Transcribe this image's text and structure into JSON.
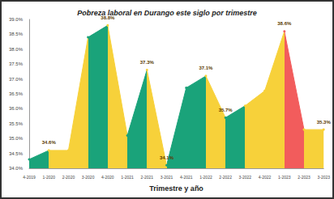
{
  "chart_data": {
    "type": "line",
    "title": "Pobreza laboral en Durango este siglo por trimestre",
    "x_label": "Trimestre y año",
    "categories": [
      "4-2019",
      "1-2020",
      "2-2020",
      "3-2020",
      "4-2020",
      "1-2021",
      "2-2021",
      "3-2021",
      "4-2021",
      "1-2022",
      "2-2022",
      "3-2022",
      "4-2022",
      "1-2023",
      "2-2023",
      "3-2023"
    ],
    "values": [
      34.3,
      34.6,
      34.6,
      38.4,
      38.8,
      35.1,
      37.3,
      34.1,
      36.7,
      37.1,
      35.7,
      36.1,
      36.6,
      38.6,
      35.3,
      35.3
    ],
    "value_labels": [
      null,
      "34.6%",
      null,
      null,
      "38.8%",
      null,
      "37.3%",
      "34.1%",
      null,
      "37.1%",
      "35.7%",
      null,
      null,
      "38.6%",
      null,
      "35.3%"
    ],
    "colors": [
      "#1aa37a",
      "#f7d13a",
      "#f7d13a",
      "#1aa37a",
      "#f7d13a",
      "#1aa37a",
      "#f7d13a",
      "#1aa37a",
      "#1aa37a",
      "#f7d13a",
      "#1aa37a",
      "#f7d13a",
      "#f7d13a",
      "#f25c5c",
      "#f7d13a",
      "#f7d13a"
    ],
    "ylim": [
      34,
      39
    ],
    "yticks": [
      {
        "value": 34,
        "label": "34.0%"
      },
      {
        "value": 34.5,
        "label": "34.5%"
      },
      {
        "value": 35,
        "label": "35.0%"
      },
      {
        "value": 35.5,
        "label": "35.5%"
      },
      {
        "value": 36,
        "label": "36.0%"
      },
      {
        "value": 36.5,
        "label": "36.5%"
      },
      {
        "value": 37,
        "label": "37.0%"
      },
      {
        "value": 37.5,
        "label": "37.5%"
      },
      {
        "value": 38,
        "label": "38.0%"
      },
      {
        "value": 38.5,
        "label": "38.5%"
      },
      {
        "value": 39,
        "label": "39.0%"
      }
    ],
    "data_labels": true,
    "grid": false
  }
}
